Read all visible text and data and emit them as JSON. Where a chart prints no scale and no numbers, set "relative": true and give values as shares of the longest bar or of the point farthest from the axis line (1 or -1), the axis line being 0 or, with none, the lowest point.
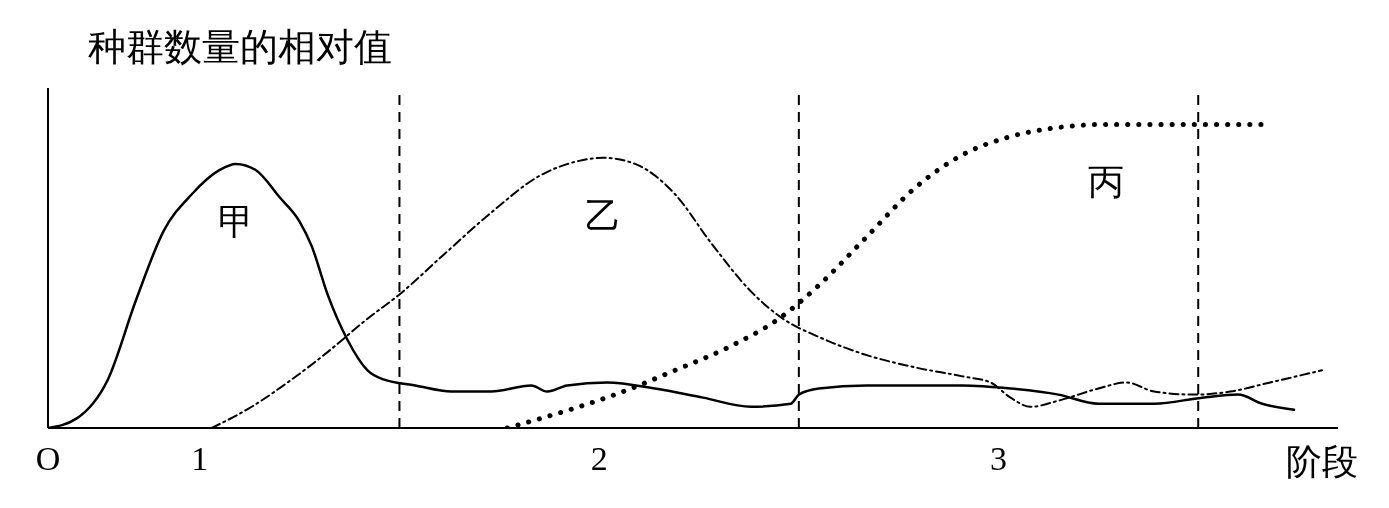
{
  "chart_data": {
    "type": "line",
    "ylabel": "种群数量的相对值",
    "xlabel": "阶段",
    "relative": true,
    "marker": "none",
    "xlim": [
      0.62,
      3.85
    ],
    "xticks": [
      {
        "value": 0.62,
        "label": "O"
      },
      1,
      2,
      3
    ],
    "ref_lines": [
      {
        "axis": "x",
        "value": 1.5,
        "line_style": "dashed",
        "color": "#000000"
      },
      {
        "axis": "x",
        "value": 2.5,
        "line_style": "dashed",
        "color": "#000000"
      },
      {
        "axis": "x",
        "value": 3.5,
        "line_style": "dashed",
        "color": "#000000"
      }
    ],
    "series": [
      {
        "name": "甲",
        "color": "#000000",
        "line_style": "solid",
        "x": [
          0.62,
          0.69,
          0.77,
          0.84,
          0.91,
          0.98,
          1.05,
          1.09,
          1.14,
          1.2,
          1.25,
          1.28,
          1.32,
          1.37,
          1.42,
          1.46,
          1.54,
          1.63,
          1.73,
          1.83,
          1.87,
          1.92,
          2.02,
          2.14,
          2.26,
          2.38,
          2.48,
          2.5,
          2.55,
          2.67,
          2.91,
          3.03,
          3.15,
          3.25,
          3.39,
          3.51,
          3.6,
          3.66,
          3.74
        ],
        "values": [
          0,
          0.03,
          0.16,
          0.42,
          0.65,
          0.77,
          0.85,
          0.87,
          0.85,
          0.76,
          0.68,
          0.6,
          0.44,
          0.29,
          0.19,
          0.16,
          0.14,
          0.12,
          0.12,
          0.14,
          0.12,
          0.14,
          0.15,
          0.13,
          0.1,
          0.07,
          0.08,
          0.11,
          0.13,
          0.14,
          0.14,
          0.13,
          0.11,
          0.08,
          0.08,
          0.1,
          0.11,
          0.08,
          0.06
        ]
      },
      {
        "name": "乙",
        "color": "#000000",
        "line_style": "dashdot",
        "x": [
          1.03,
          1.13,
          1.22,
          1.32,
          1.42,
          1.5,
          1.61,
          1.73,
          1.85,
          1.95,
          2.01,
          2.09,
          2.19,
          2.28,
          2.38,
          2.46,
          2.55,
          2.67,
          2.79,
          2.91,
          2.98,
          3.03,
          3.08,
          3.15,
          3.25,
          3.32,
          3.39,
          3.49,
          3.58,
          3.68,
          3.81
        ],
        "values": [
          0,
          0.07,
          0.15,
          0.25,
          0.36,
          0.44,
          0.57,
          0.71,
          0.83,
          0.88,
          0.89,
          0.87,
          0.77,
          0.61,
          0.45,
          0.36,
          0.3,
          0.24,
          0.2,
          0.17,
          0.15,
          0.1,
          0.07,
          0.09,
          0.13,
          0.15,
          0.12,
          0.11,
          0.12,
          0.15,
          0.19
        ]
      },
      {
        "name": "丙",
        "color": "#000000",
        "line_style": "dotted",
        "x": [
          1.77,
          1.85,
          1.95,
          2.04,
          2.19,
          2.33,
          2.45,
          2.55,
          2.67,
          2.79,
          2.91,
          3.03,
          3.15,
          3.27,
          3.39,
          3.51,
          3.67
        ],
        "values": [
          0,
          0.03,
          0.07,
          0.11,
          0.19,
          0.27,
          0.36,
          0.47,
          0.63,
          0.79,
          0.9,
          0.96,
          0.99,
          1,
          1,
          1,
          1
        ]
      }
    ]
  }
}
